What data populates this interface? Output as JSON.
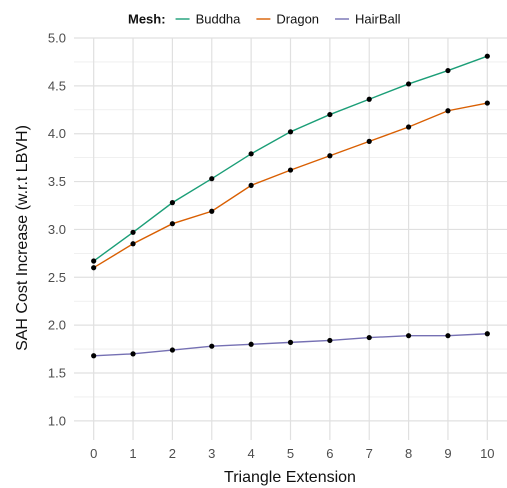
{
  "chart_data": {
    "type": "line",
    "title": "",
    "xlabel": "Triangle Extension",
    "ylabel": "SAH Cost Increase (w.r.t LBVH)",
    "x": [
      0,
      1,
      2,
      3,
      4,
      5,
      6,
      7,
      8,
      9,
      10
    ],
    "x_tick_labels": [
      "0",
      "1",
      "2",
      "3",
      "4",
      "5",
      "6",
      "7",
      "8",
      "9",
      "10"
    ],
    "xlim": [
      -0.5,
      10.5
    ],
    "ylim": [
      0.8,
      5.0
    ],
    "y_ticks": [
      1.0,
      1.5,
      2.0,
      2.5,
      3.0,
      3.5,
      4.0,
      4.5,
      5.0
    ],
    "y_tick_labels": [
      "1.0",
      "1.5",
      "2.0",
      "2.5",
      "3.0",
      "3.5",
      "4.0",
      "4.5",
      "5.0"
    ],
    "grid": true,
    "legend": {
      "title": "Mesh:",
      "placement": "top"
    },
    "series": [
      {
        "name": "Buddha",
        "color": "#1b9e77",
        "values": [
          2.67,
          2.97,
          3.28,
          3.53,
          3.79,
          4.02,
          4.2,
          4.36,
          4.52,
          4.66,
          4.81
        ]
      },
      {
        "name": "Dragon",
        "color": "#d95f02",
        "values": [
          2.6,
          2.85,
          3.06,
          3.19,
          3.46,
          3.62,
          3.77,
          3.92,
          4.07,
          4.24,
          4.32
        ]
      },
      {
        "name": "HairBall",
        "color": "#7570b3",
        "values": [
          1.68,
          1.7,
          1.74,
          1.78,
          1.8,
          1.82,
          1.84,
          1.87,
          1.89,
          1.89,
          1.91
        ]
      }
    ]
  }
}
